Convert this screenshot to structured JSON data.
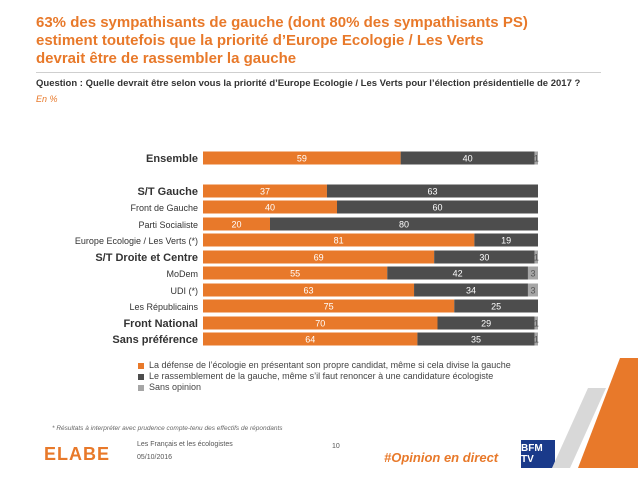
{
  "title_lines": [
    "63% des sympathisants de gauche (dont 80% des sympathisants PS)",
    "estiment toutefois que la priorité d’Europe Ecologie / Les Verts",
    "devrait être de rassembler la gauche"
  ],
  "question": "Question : Quelle devrait être selon vous la priorité d’Europe Ecologie / Les Verts pour l’élection présidentielle de 2017 ?",
  "unit": "En %",
  "colors": {
    "accent": "#e8792a",
    "series": [
      "#e8792a",
      "#4d4d4d",
      "#a6a6a6"
    ]
  },
  "chart_data": {
    "type": "bar",
    "orientation": "horizontal",
    "stacked": true,
    "categories": [
      "Ensemble",
      "S/T Gauche",
      "Front de Gauche",
      "Parti Socialiste",
      "Europe Ecologie / Les Verts (*)",
      "S/T Droite et Centre",
      "MoDem",
      "UDI (*)",
      "Les Républicains",
      "Front National",
      "Sans préférence"
    ],
    "bold_categories": [
      "Ensemble",
      "S/T Gauche",
      "S/T Droite et Centre",
      "Front National",
      "Sans préférence"
    ],
    "series": [
      {
        "name": "La défense de l’écologie en présentant son propre candidat, même si cela divise la gauche",
        "values": [
          59,
          37,
          40,
          20,
          81,
          69,
          55,
          63,
          75,
          70,
          64
        ]
      },
      {
        "name": "Le rassemblement de la gauche, même s’il faut renoncer à une candidature écologiste",
        "values": [
          40,
          63,
          60,
          80,
          19,
          30,
          42,
          34,
          25,
          29,
          35
        ]
      },
      {
        "name": "Sans opinion",
        "values": [
          1,
          0,
          0,
          0,
          0,
          1,
          3,
          3,
          0,
          1,
          1
        ]
      }
    ],
    "xlim": [
      0,
      100
    ]
  },
  "footnote": "* Résultats à interpréter avec prudence compte-tenu des effectifs de répondants",
  "footer": {
    "logo": "ELABE",
    "study": "Les Français et les écologistes",
    "date": "05/10/2016",
    "page": "10",
    "hashtag": "#Opinion en direct",
    "channel": "BFM TV"
  }
}
